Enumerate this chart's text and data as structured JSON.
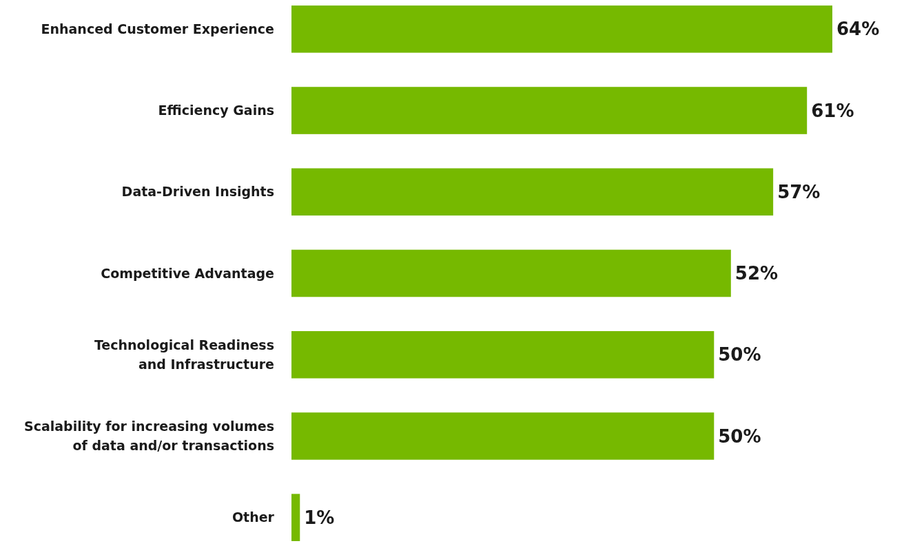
{
  "chart_data": {
    "type": "bar",
    "orientation": "horizontal",
    "categories": [
      "Enhanced Customer Experience",
      "Efficiency Gains",
      "Data-Driven Insights",
      "Competitive Advantage",
      "Technological Readiness\nand Infrastructure",
      "Scalability for increasing volumes\nof data and/or transactions",
      "Other"
    ],
    "values": [
      64,
      61,
      57,
      52,
      50,
      50,
      1
    ],
    "value_labels": [
      "64%",
      "61%",
      "57%",
      "52%",
      "50%",
      "50%",
      "1%"
    ],
    "color": "#76b900"
  }
}
